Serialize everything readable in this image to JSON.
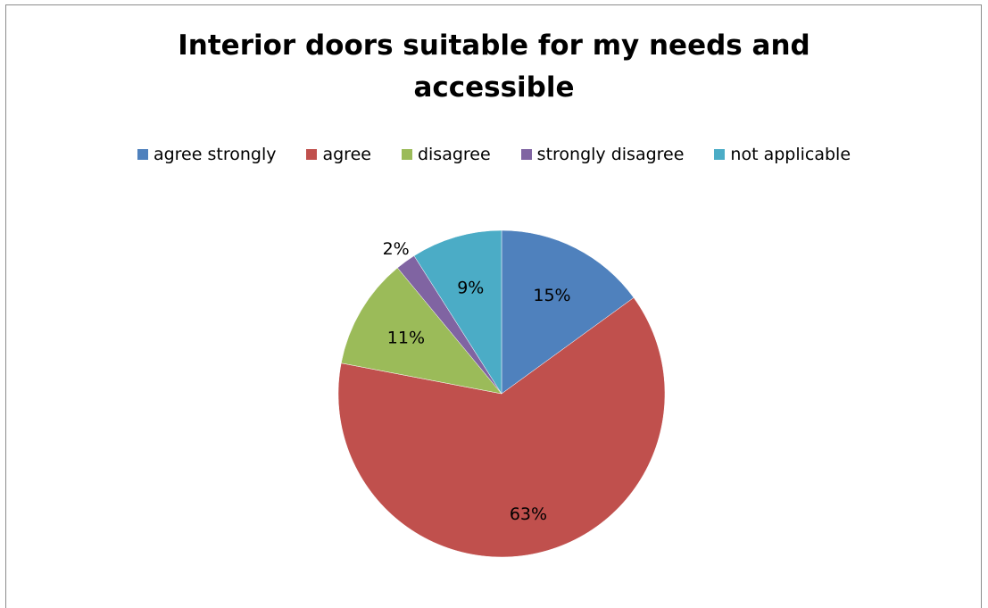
{
  "chart_data": {
    "type": "pie",
    "title": "Interior doors suitable for my needs and accessible",
    "title_lines": [
      "Interior doors suitable for my needs and",
      "accessible"
    ],
    "legend_position": "top",
    "categories": [
      "agree strongly",
      "agree",
      "disagree",
      "strongly disagree",
      "not applicable"
    ],
    "values": [
      15,
      63,
      11,
      2,
      9
    ],
    "labels": [
      "15%",
      "63%",
      "11%",
      "2%",
      "9%"
    ],
    "colors": [
      "#4f81bd",
      "#c0504d",
      "#9bbb59",
      "#8064a2",
      "#4bacc6"
    ]
  }
}
